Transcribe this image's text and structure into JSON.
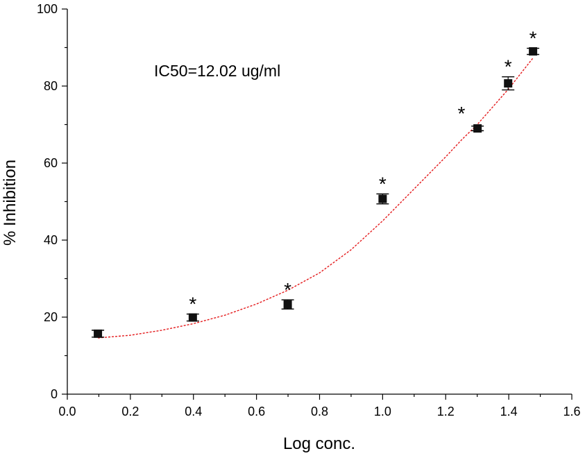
{
  "chart_data": {
    "type": "scatter",
    "xlabel": "Log conc.",
    "ylabel": "% Inhibition",
    "xlim": [
      0.0,
      1.6
    ],
    "ylim": [
      0,
      100
    ],
    "x_ticks": [
      "0.0",
      "0.2",
      "0.4",
      "0.6",
      "0.8",
      "1.0",
      "1.2",
      "1.4",
      "1.6"
    ],
    "y_ticks": [
      "0",
      "20",
      "40",
      "60",
      "80",
      "100"
    ],
    "annotation": "IC50=12.02 ug/ml",
    "points": [
      {
        "x": 0.097,
        "y": 15.7,
        "err": 0.9,
        "star": false
      },
      {
        "x": 0.398,
        "y": 19.9,
        "err": 0.9,
        "star": true
      },
      {
        "x": 0.699,
        "y": 23.3,
        "err": 1.2,
        "star": true
      },
      {
        "x": 1.0,
        "y": 50.7,
        "err": 1.3,
        "star": true
      },
      {
        "x": 1.301,
        "y": 69.0,
        "err": 0.6,
        "star": false
      },
      {
        "x": 1.398,
        "y": 80.7,
        "err": 1.7,
        "star": true
      },
      {
        "x": 1.477,
        "y": 89.0,
        "err": 0.8,
        "star": true
      }
    ],
    "extra_stars": [
      {
        "x": 1.25,
        "y": 73.0
      }
    ],
    "fit_curve": {
      "style": "dashed",
      "color": "#e41a1c",
      "x": [
        0.097,
        0.2,
        0.3,
        0.4,
        0.5,
        0.6,
        0.7,
        0.8,
        0.9,
        1.0,
        1.1,
        1.2,
        1.25,
        1.3,
        1.4,
        1.477
      ],
      "y": [
        14.6,
        15.3,
        16.6,
        18.3,
        20.5,
        23.4,
        27.0,
        31.5,
        37.5,
        45.0,
        53.3,
        61.6,
        66.0,
        70.0,
        79.3,
        87.3
      ]
    },
    "grid": false,
    "legend": "none"
  }
}
